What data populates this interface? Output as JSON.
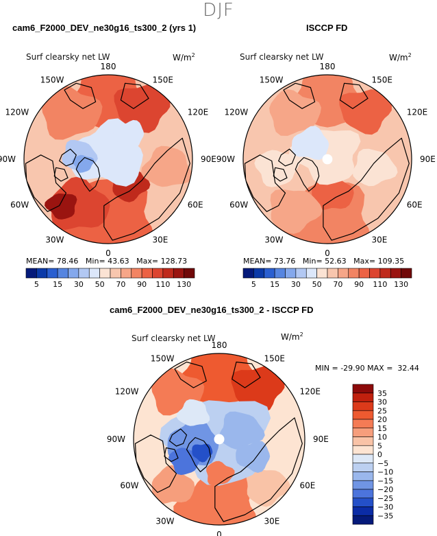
{
  "season": "DJF",
  "panels": [
    {
      "title": "cam6_F2000_DEV_ne30g16_ts300_2 (yrs 1)",
      "variable": "Surf clearsky net LW",
      "unit_base": "W/m",
      "unit_exp": "2",
      "mean_label": "MEAN=",
      "mean": "78.46",
      "min_label": "Min=",
      "min": "43.63",
      "max_label": "Max=",
      "max": "128.73"
    },
    {
      "title": "ISCCP FD",
      "variable": "Surf clearsky net LW",
      "unit_base": "W/m",
      "unit_exp": "2",
      "mean_label": "MEAN=",
      "mean": "73.76",
      "min_label": "Min=",
      "min": "52.63",
      "max_label": "Max=",
      "max": "109.35"
    },
    {
      "title": "cam6_F2000_DEV_ne30g16_ts300_2 - ISCCP FD",
      "variable": "Surf clearsky net LW",
      "unit_base": "W/m",
      "unit_exp": "2",
      "min_label": "MIN =",
      "min": "-29.90",
      "max_label": "MAX =",
      "max": "32.44"
    }
  ],
  "lon_labels": {
    "top": "180",
    "upper_left": "150W",
    "upper_right": "150E",
    "left_high": "120W",
    "right_high": "120E",
    "left": "90W",
    "right": "90E",
    "left_low": "60W",
    "right_low": "60E",
    "lower_left": "30W",
    "lower_right": "30E",
    "bottom": "0"
  },
  "chart_data": [
    {
      "type": "heatmap",
      "projection": "north-polar-stereographic",
      "title": "cam6_F2000_DEV_ne30g16_ts300_2 (yrs 1)",
      "field": "Surf clearsky net LW",
      "units": "W/m2",
      "mean": 78.46,
      "min": 43.63,
      "max": 128.73,
      "colorbar_levels": [
        5,
        15,
        30,
        50,
        70,
        90,
        110,
        130
      ],
      "colorbar_tick_labels": [
        "5",
        "15",
        "30",
        "50",
        "70",
        "90",
        "110",
        "130"
      ],
      "colorbar_colors": [
        "#051a7a",
        "#0b3aa8",
        "#2a5fd0",
        "#5685e0",
        "#84a8ec",
        "#b2c8f3",
        "#dce7fa",
        "#fbe3d4",
        "#f8c6ae",
        "#f6a688",
        "#f28463",
        "#ec6244",
        "#dc4530",
        "#bf2a1c",
        "#9a1410",
        "#700808"
      ]
    },
    {
      "type": "heatmap",
      "projection": "north-polar-stereographic",
      "title": "ISCCP FD",
      "field": "Surf clearsky net LW",
      "units": "W/m2",
      "mean": 73.76,
      "min": 52.63,
      "max": 109.35,
      "colorbar_levels": [
        5,
        15,
        30,
        50,
        70,
        90,
        110,
        130
      ],
      "colorbar_tick_labels": [
        "5",
        "15",
        "30",
        "50",
        "70",
        "90",
        "110",
        "130"
      ],
      "colorbar_colors": [
        "#051a7a",
        "#0b3aa8",
        "#2a5fd0",
        "#5685e0",
        "#84a8ec",
        "#b2c8f3",
        "#dce7fa",
        "#fbe3d4",
        "#f8c6ae",
        "#f6a688",
        "#f28463",
        "#ec6244",
        "#dc4530",
        "#bf2a1c",
        "#9a1410",
        "#700808"
      ]
    },
    {
      "type": "heatmap",
      "projection": "north-polar-stereographic",
      "title": "cam6_F2000_DEV_ne30g16_ts300_2 - ISCCP FD",
      "field": "Surf clearsky net LW (difference)",
      "units": "W/m2",
      "min": -29.9,
      "max": 32.44,
      "colorbar_levels": [
        35,
        30,
        25,
        20,
        15,
        10,
        5,
        0,
        -5,
        -10,
        -15,
        -20,
        -25,
        -30,
        -35
      ],
      "colorbar_tick_labels": [
        "35",
        "30",
        "25",
        "20",
        "15",
        "10",
        "5",
        "0",
        "−5",
        "−10",
        "−15",
        "−20",
        "−25",
        "−30",
        "−35"
      ],
      "colorbar_colors": [
        "#8c0a0a",
        "#c0200e",
        "#dc3a1a",
        "#ee5a30",
        "#f47b55",
        "#f69e7c",
        "#f9c3a7",
        "#fde4d2",
        "#dde8f7",
        "#bcd0f1",
        "#9ab7ec",
        "#7095e4",
        "#4c74dc",
        "#2450c8",
        "#0b2ca6",
        "#051a7a"
      ]
    }
  ]
}
